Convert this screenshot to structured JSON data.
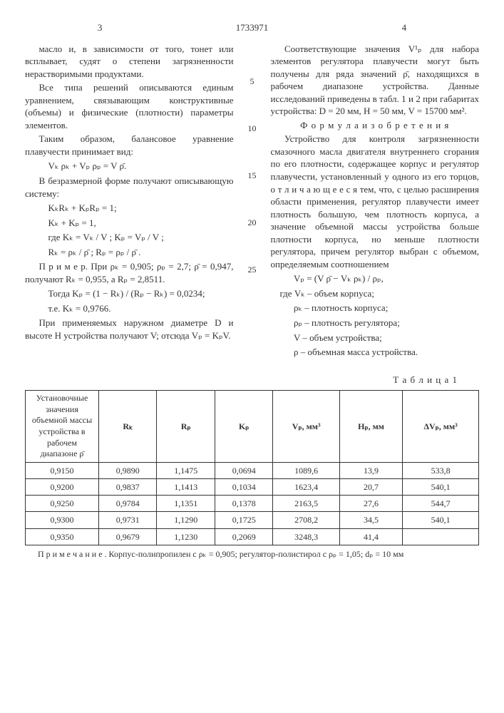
{
  "doc_number": "1733971",
  "page_left": "3",
  "page_right": "4",
  "left_col": {
    "p1": "масло и, в зависимости от того, тонет или всплывает, судят о степени загрязненности нерастворимыми продуктами.",
    "p2": "Все типа решений описываются единым уравнением, связывающим конструктивные (объемы) и физические (плотности) параметры элементов.",
    "p3": "Таким образом, балансовое уравнение плавучести принимает вид:",
    "f1": "Vₖ ρₖ + Vₚ ρₚ = V ρ̄.",
    "p4": "В безразмерной форме получают описывающую систему:",
    "f2": "KₖRₖ + KₚRₚ = 1;",
    "f3": "Kₖ + Kₚ = 1,",
    "f4": "где Kₖ = Vₖ / V ;   Kₚ = Vₚ / V ;",
    "f5": "Rₖ = ρₖ / ρ̄ ;   Rₚ = ρₚ / ρ̄ .",
    "p5": "П р и м е р. При ρₖ = 0,905; ρₚ = 2,7; ρ̄ = 0,947, получают Rₖ = 0,955, а Rₚ = 2,8511.",
    "f6": "Тогда Kₚ = (1 − Rₖ) / (Rₚ − Rₖ) = 0,0234;",
    "f7": "т.е. Kₖ = 0,9766.",
    "p6": "При применяемых наружном диаметре D и высоте H устройства получают V; отсюда Vₚ = KₚV."
  },
  "right_col": {
    "p1": "Соответствующие значения V¹ₚ для набора элементов регулятора плавучести могут быть получены для ряда значений ρ̄, находящихся в рабочем диапазоне устройства. Данные исследований приведены в табл. 1 и 2 при габаритах устройства: D = 20 мм, H = 50 мм, V = 15700 мм².",
    "claims_title": "Ф о р м у л а  и з о б р е т е н и я",
    "p2": "Устройство для контроля загрязненности смазочного масла двигателя внутреннего сгорания по его плотности, содержащее корпус и регулятор плавучести, установленный у одного из его торцов, о т л и ч а ю щ е е с я тем, что, с целью расширения области применения, регулятор плавучести имеет плотность большую, чем плотность корпуса, а значение объемной массы устройства больше плотности корпуса, но меньше плотности регулятора, причем регулятор выбран с объемом, определяемым соотношением",
    "f1": "Vₚ = (V ρ̄ − Vₖ ρₖ) / ρₚ,",
    "l1": "где Vₖ – объем корпуса;",
    "l2": "ρₖ – плотность корпуса;",
    "l3": "ρₚ – плотность регулятора;",
    "l4": "V – объем устройства;",
    "l5": "ρ – объемная масса устройства."
  },
  "line_numbers": [
    "5",
    "10",
    "15",
    "20",
    "25"
  ],
  "table": {
    "label": "Т а б л и ц а 1",
    "header_rowlabel": "Установочные значения объемной массы устройства в рабочем диапазоне ρ̄",
    "columns": [
      "Rₖ",
      "Rₚ",
      "Kₚ",
      "Vₚ, мм³",
      "Hₚ, мм",
      "ΔVₚ, мм³"
    ],
    "rows": [
      [
        "0,9150",
        "0,9890",
        "1,1475",
        "0,0694",
        "1089,6",
        "13,9",
        "533,8"
      ],
      [
        "0,9200",
        "0,9837",
        "1,1413",
        "0,1034",
        "1623,4",
        "20,7",
        "540,1"
      ],
      [
        "0,9250",
        "0,9784",
        "1,1351",
        "0,1378",
        "2163,5",
        "27,6",
        "544,7"
      ],
      [
        "0,9300",
        "0,9731",
        "1,1290",
        "0,1725",
        "2708,2",
        "34,5",
        "540,1"
      ],
      [
        "0,9350",
        "0,9679",
        "1,1230",
        "0,2069",
        "3248,3",
        "41,4",
        ""
      ]
    ],
    "note": "П р и м е ч а н и е . Корпус-полипропилен с ρₖ = 0,905; регулятор-полистирол с ρₚ = 1,05; dₚ = 10 мм"
  }
}
